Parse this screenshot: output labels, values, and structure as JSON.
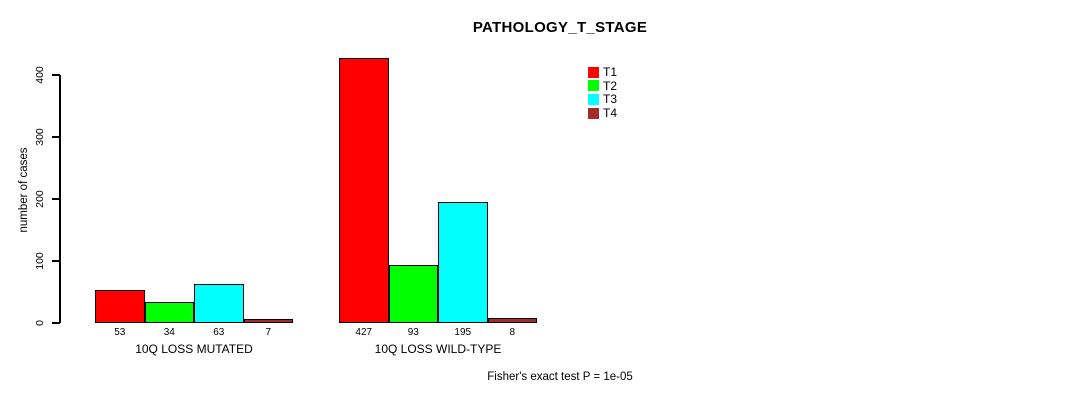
{
  "chart_data": {
    "type": "bar",
    "title": "PATHOLOGY_T_STAGE",
    "ylabel": "number of cases",
    "xlabel": "",
    "categories": [
      "10Q LOSS MUTATED",
      "10Q LOSS WILD-TYPE"
    ],
    "series": [
      {
        "name": "T1",
        "color": "#FF0000",
        "values": [
          53,
          427
        ]
      },
      {
        "name": "T2",
        "color": "#00FF00",
        "values": [
          34,
          93
        ]
      },
      {
        "name": "T3",
        "color": "#00FFFF",
        "values": [
          63,
          195
        ]
      },
      {
        "name": "T4",
        "color": "#A52A2A",
        "values": [
          7,
          8
        ]
      }
    ],
    "value_labels": [
      [
        "53",
        "34",
        "63",
        "7"
      ],
      [
        "427",
        "93",
        "195",
        "8"
      ]
    ],
    "yticks": [
      "0",
      "100",
      "200",
      "300",
      "400"
    ],
    "ylim": [
      0,
      440
    ],
    "grid": false,
    "legend_position": "top-right",
    "annotation": "Fisher's exact test P = 1e-05"
  }
}
